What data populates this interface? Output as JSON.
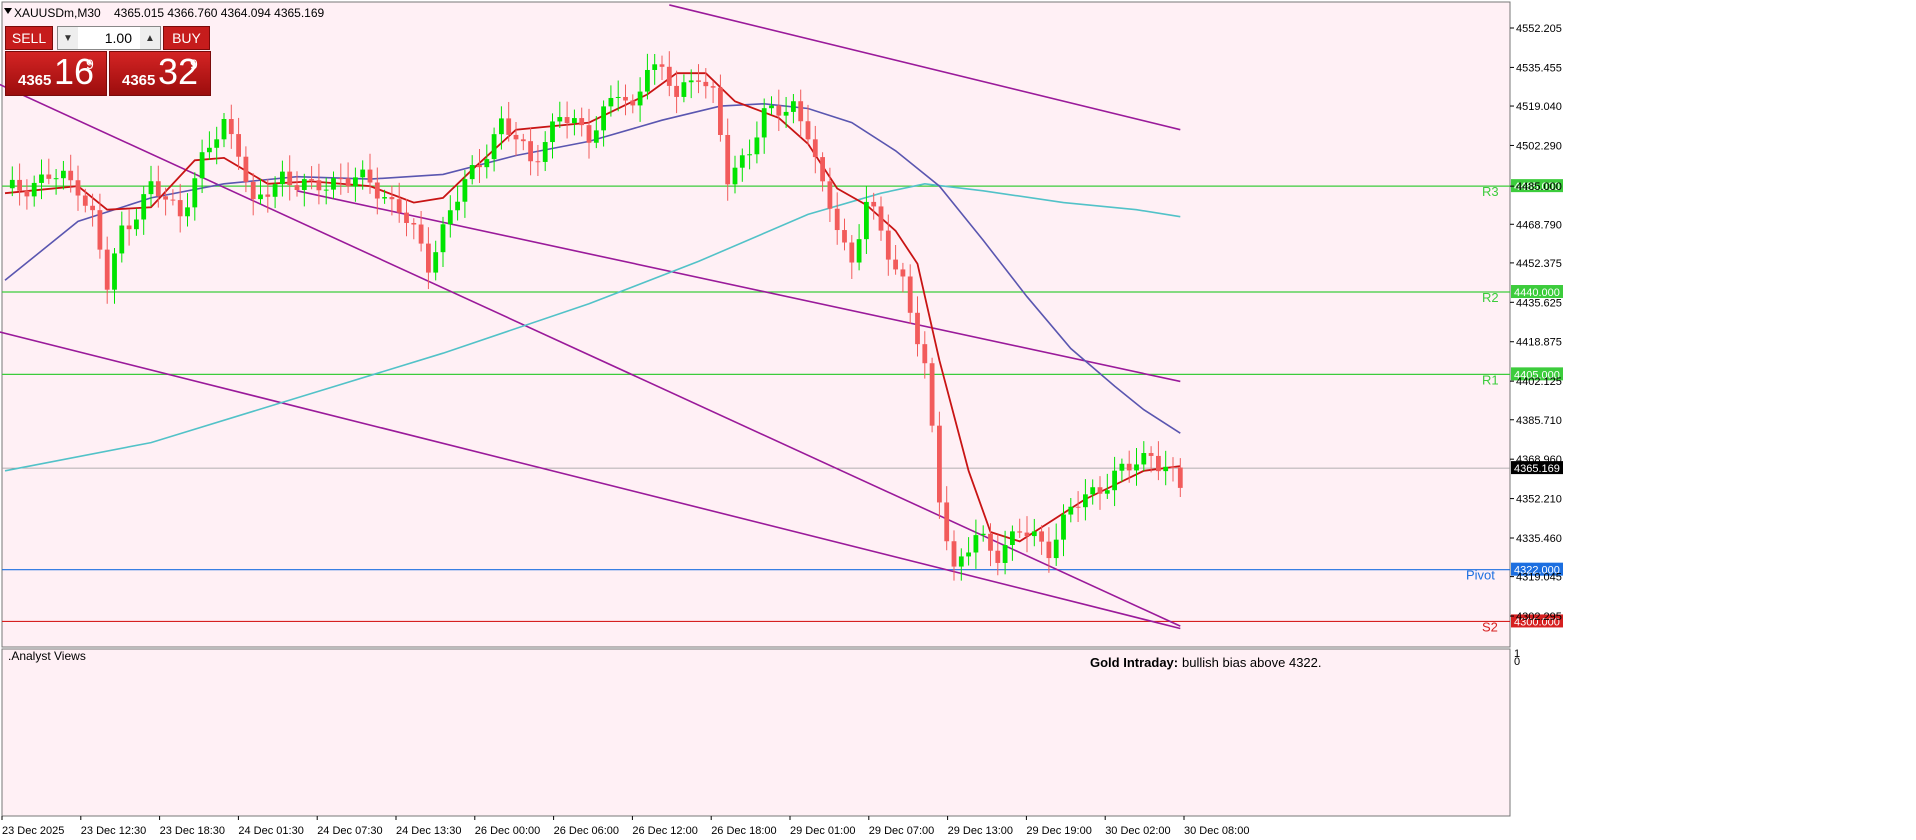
{
  "header": {
    "symbol": "XAUUSDm,M30",
    "ohlc": "4365.015 4366.760 4364.094 4365.169"
  },
  "trade_panel": {
    "sell_label": "SELL",
    "buy_label": "BUY",
    "quantity": "1.00",
    "sell_small": "4365",
    "sell_big": "16",
    "sell_sup": "9",
    "buy_small": "4365",
    "buy_big": "32",
    "buy_sup": "9"
  },
  "indicator_panel": {
    "label": ".Analyst Views",
    "scale_top": "1",
    "scale_bottom": "0",
    "text_title": "Gold Intraday:",
    "text_body": "bullish bias above 4322."
  },
  "colors": {
    "background": "#fff0f5",
    "bull": "#00e400",
    "bear": "#f25b5b",
    "ma_fast": "#c81414",
    "ma_mid": "#5a56b0",
    "ma_slow": "#52c2c8",
    "channel": "#9a1a9a",
    "resistance": "#3ccc3c",
    "pivot": "#1c6fe0",
    "support": "#d62020"
  },
  "chart_data": {
    "type": "candlestick",
    "y_ticks": [
      "4552.205",
      "4535.455",
      "4519.040",
      "4502.290",
      "4485.000",
      "4468.790",
      "4452.375",
      "4435.625",
      "4418.875",
      "4402.125",
      "4385.710",
      "4368.960",
      "4352.210",
      "4335.460",
      "4319.045",
      "4302.295"
    ],
    "x_ticks": [
      "23 Dec 2025",
      "23 Dec 12:30",
      "23 Dec 18:30",
      "24 Dec 01:30",
      "24 Dec 07:30",
      "24 Dec 13:30",
      "26 Dec 00:00",
      "26 Dec 06:00",
      "26 Dec 12:00",
      "26 Dec 18:00",
      "29 Dec 01:00",
      "29 Dec 07:00",
      "29 Dec 13:00",
      "29 Dec 19:00",
      "30 Dec 02:00",
      "30 Dec 08:00"
    ],
    "current_price": "4365.169",
    "levels": [
      {
        "name": "R3",
        "value": "4485.000",
        "price": 4485.0,
        "kind": "resistance"
      },
      {
        "name": "R2",
        "value": "4440.000",
        "price": 4440.0,
        "kind": "resistance"
      },
      {
        "name": "R1",
        "value": "4405.000",
        "price": 4405.0,
        "kind": "resistance"
      },
      {
        "name": "Pivot",
        "value": "4322.000",
        "price": 4322.0,
        "kind": "pivot"
      },
      {
        "name": "S2",
        "value": "4300.000",
        "price": 4300.0,
        "kind": "support"
      }
    ],
    "price_range": [
      4295,
      4560
    ],
    "anchors": [
      [
        0,
        4482
      ],
      [
        6,
        4489
      ],
      [
        10,
        4486
      ],
      [
        12,
        4472
      ],
      [
        14,
        4442
      ],
      [
        16,
        4466
      ],
      [
        20,
        4484
      ],
      [
        24,
        4474
      ],
      [
        27,
        4495
      ],
      [
        30,
        4512
      ],
      [
        32,
        4502
      ],
      [
        34,
        4475
      ],
      [
        38,
        4490
      ],
      [
        42,
        4483
      ],
      [
        46,
        4489
      ],
      [
        50,
        4486
      ],
      [
        54,
        4476
      ],
      [
        58,
        4452
      ],
      [
        61,
        4475
      ],
      [
        64,
        4490
      ],
      [
        68,
        4512
      ],
      [
        72,
        4496
      ],
      [
        76,
        4514
      ],
      [
        80,
        4508
      ],
      [
        84,
        4524
      ],
      [
        86,
        4517
      ],
      [
        88,
        4539
      ],
      [
        92,
        4524
      ],
      [
        95,
        4534
      ],
      [
        97,
        4522
      ],
      [
        99,
        4488
      ],
      [
        102,
        4502
      ],
      [
        104,
        4514
      ],
      [
        108,
        4520
      ],
      [
        110,
        4508
      ],
      [
        112,
        4482
      ],
      [
        114,
        4470
      ],
      [
        116,
        4452
      ],
      [
        118,
        4478
      ],
      [
        121,
        4458
      ],
      [
        123,
        4445
      ],
      [
        126,
        4406
      ],
      [
        128,
        4354
      ],
      [
        130,
        4322
      ],
      [
        133,
        4335
      ],
      [
        136,
        4330
      ],
      [
        139,
        4338
      ],
      [
        143,
        4332
      ],
      [
        146,
        4347
      ],
      [
        150,
        4358
      ],
      [
        154,
        4365
      ],
      [
        157,
        4372
      ],
      [
        159,
        4365
      ],
      [
        161,
        4356
      ]
    ],
    "ma_fast": [
      [
        0,
        4482
      ],
      [
        10,
        4485
      ],
      [
        14,
        4475
      ],
      [
        20,
        4476
      ],
      [
        26,
        4496
      ],
      [
        30,
        4497
      ],
      [
        36,
        4486
      ],
      [
        42,
        4487
      ],
      [
        50,
        4485
      ],
      [
        56,
        4478
      ],
      [
        60,
        4480
      ],
      [
        64,
        4492
      ],
      [
        70,
        4509
      ],
      [
        80,
        4512
      ],
      [
        88,
        4524
      ],
      [
        92,
        4533
      ],
      [
        96,
        4533
      ],
      [
        100,
        4521
      ],
      [
        106,
        4514
      ],
      [
        110,
        4503
      ],
      [
        114,
        4484
      ],
      [
        118,
        4477
      ],
      [
        122,
        4466
      ],
      [
        125,
        4452
      ],
      [
        128,
        4411
      ],
      [
        132,
        4364
      ],
      [
        135,
        4338
      ],
      [
        139,
        4334
      ],
      [
        143,
        4342
      ],
      [
        148,
        4352
      ],
      [
        152,
        4358
      ],
      [
        156,
        4364
      ],
      [
        161,
        4366
      ]
    ],
    "ma_mid": [
      [
        0,
        4445
      ],
      [
        10,
        4470
      ],
      [
        20,
        4480
      ],
      [
        30,
        4486
      ],
      [
        40,
        4489
      ],
      [
        50,
        4488
      ],
      [
        60,
        4490
      ],
      [
        70,
        4498
      ],
      [
        80,
        4504
      ],
      [
        90,
        4513
      ],
      [
        98,
        4519
      ],
      [
        104,
        4520
      ],
      [
        110,
        4518
      ],
      [
        116,
        4512
      ],
      [
        122,
        4500
      ],
      [
        128,
        4485
      ],
      [
        134,
        4462
      ],
      [
        140,
        4438
      ],
      [
        146,
        4416
      ],
      [
        152,
        4400
      ],
      [
        156,
        4390
      ],
      [
        161,
        4380
      ]
    ],
    "ma_slow": [
      [
        0,
        4364
      ],
      [
        20,
        4376
      ],
      [
        40,
        4395
      ],
      [
        60,
        4414
      ],
      [
        80,
        4435
      ],
      [
        95,
        4453
      ],
      [
        110,
        4473
      ],
      [
        120,
        4482
      ],
      [
        126,
        4486
      ],
      [
        134,
        4483
      ],
      [
        145,
        4478
      ],
      [
        155,
        4475
      ],
      [
        161,
        4472
      ]
    ],
    "channel_lines": [
      {
        "from": [
          -2,
          4530
        ],
        "to": [
          161,
          4298
        ]
      },
      {
        "from": [
          -2,
          4424
        ],
        "to": [
          161,
          4297
        ]
      },
      {
        "from": [
          91,
          4562
        ],
        "to": [
          161,
          4509
        ]
      },
      {
        "from": [
          40,
          4483
        ],
        "to": [
          161,
          4402
        ]
      }
    ]
  }
}
